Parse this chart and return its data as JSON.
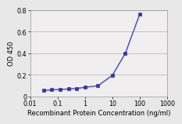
{
  "x": [
    0.0313,
    0.0625,
    0.125,
    0.25,
    0.5,
    1.0,
    3.0,
    10.0,
    30.0,
    100.0
  ],
  "y": [
    0.055,
    0.063,
    0.065,
    0.07,
    0.075,
    0.085,
    0.1,
    0.195,
    0.4,
    0.76
  ],
  "line_color": "#4444bb",
  "marker_color": "#3333aa",
  "marker": "s",
  "marker_size": 2.5,
  "line_width": 1.0,
  "xlabel": "Recombinant Protein Concentration (ng/ml)",
  "ylabel": "OD 450",
  "xlim": [
    0.01,
    1000
  ],
  "ylim": [
    0,
    0.8
  ],
  "yticks": [
    0,
    0.2,
    0.4,
    0.6,
    0.8
  ],
  "xticks": [
    0.01,
    0.1,
    1,
    10,
    100,
    1000
  ],
  "xlabel_fontsize": 6.0,
  "ylabel_fontsize": 6.0,
  "tick_fontsize": 5.8,
  "figure_background": "#e8e8e8",
  "plot_background": "#f0eeee",
  "grid_color": "#b0b0b0",
  "spine_color": "#999999"
}
